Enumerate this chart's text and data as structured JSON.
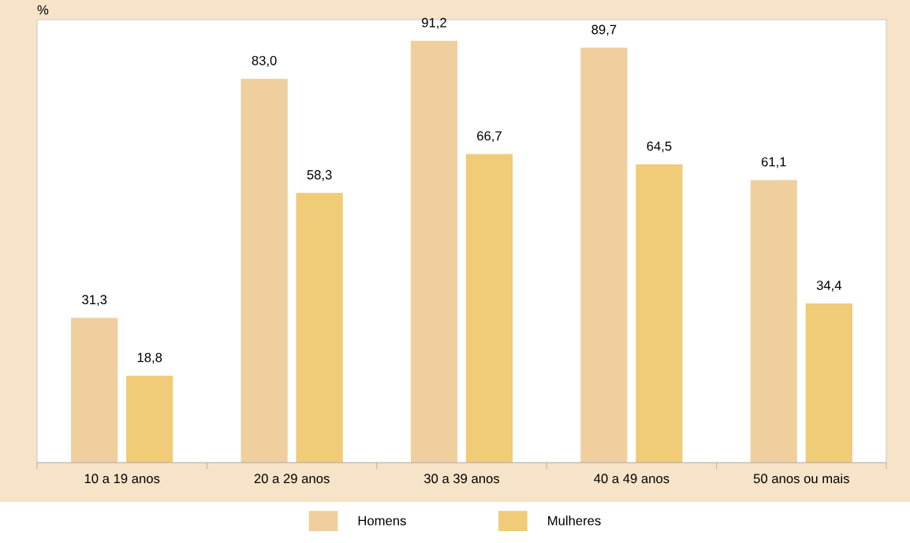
{
  "chart_data": {
    "type": "bar",
    "ylabel": "%",
    "categories": [
      "10 a 19 anos",
      "20 a 29 anos",
      "30 a 39 anos",
      "40 a 49 anos",
      "50 anos ou mais"
    ],
    "series": [
      {
        "name": "Homens",
        "color": "#f0cf9f",
        "values": [
          31.3,
          83.0,
          91.2,
          89.7,
          61.1
        ],
        "value_labels": [
          "31,3",
          "83,0",
          "91,2",
          "89,7",
          "61,1"
        ]
      },
      {
        "name": "Mulheres",
        "color": "#f0cb78",
        "values": [
          18.8,
          58.3,
          66.7,
          64.5,
          34.4
        ],
        "value_labels": [
          "18,8",
          "58,3",
          "66,7",
          "64,5",
          "34,4"
        ]
      }
    ],
    "legend": "bottom",
    "tick_labels": "x"
  }
}
